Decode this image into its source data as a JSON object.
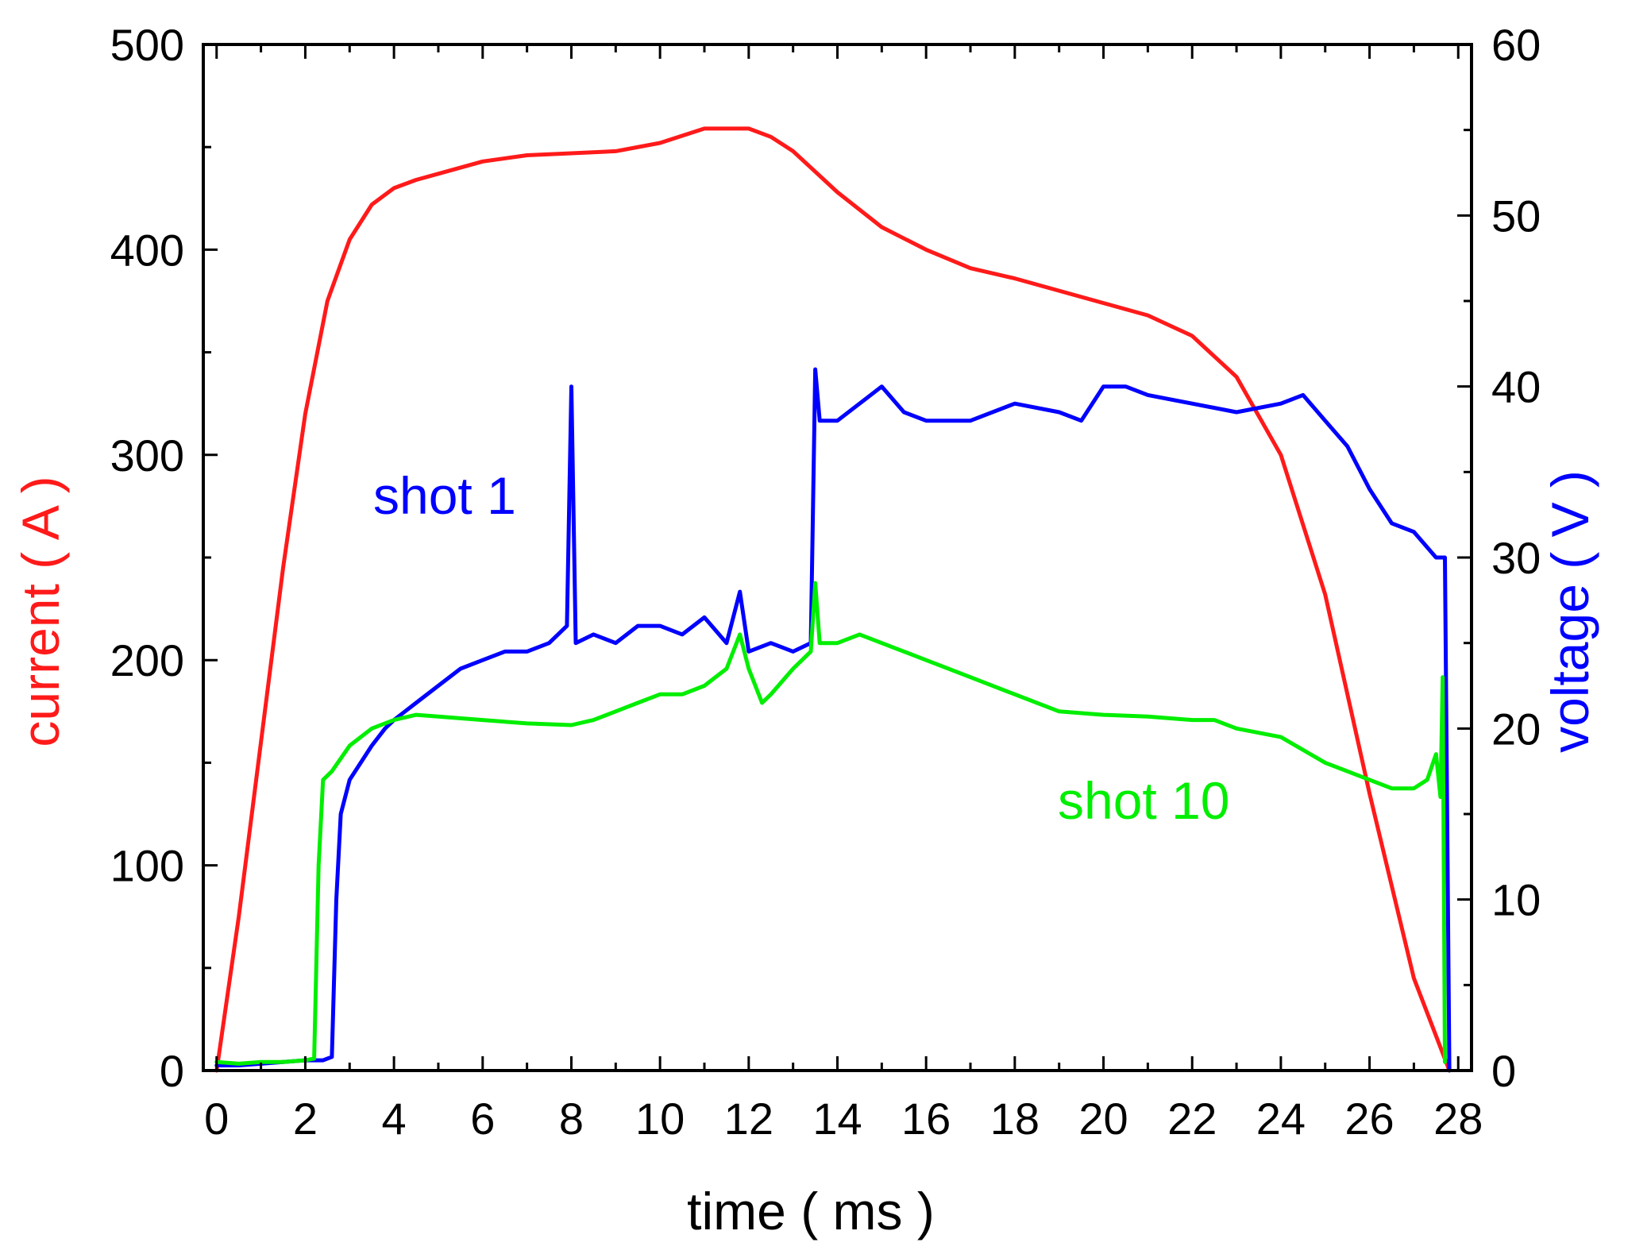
{
  "chart_data": {
    "type": "line",
    "title": "",
    "xlabel": "time ( ms )",
    "ylabel_left": {
      "prefix": "current",
      "unit": "( A )"
    },
    "ylabel_right": {
      "prefix": "voltage",
      "unit": "( V )"
    },
    "xlim": [
      -0.3,
      28.3
    ],
    "ylim_left": [
      0,
      500
    ],
    "ylim_right": [
      0,
      60
    ],
    "x_ticks": [
      0,
      2,
      4,
      6,
      8,
      10,
      12,
      14,
      16,
      18,
      20,
      22,
      24,
      26,
      28
    ],
    "x_tick_labels": [
      "0",
      "2",
      "4",
      "6",
      "8",
      "10",
      "12",
      "14",
      "16",
      "18",
      "20",
      "22",
      "24",
      "26",
      "28"
    ],
    "y_ticks_left": [
      0,
      100,
      200,
      300,
      400,
      500
    ],
    "y_tick_labels_left": [
      "0",
      "100",
      "200",
      "300",
      "400",
      "500"
    ],
    "y_ticks_right": [
      0,
      10,
      20,
      30,
      40,
      50,
      60
    ],
    "y_tick_labels_right": [
      "0",
      "10",
      "20",
      "30",
      "40",
      "50",
      "60"
    ],
    "grid": false,
    "colors": {
      "current": "#ff1a1a",
      "shot1": "#0000ff",
      "shot10": "#00ee00",
      "axis": "#000000"
    },
    "annotations": {
      "shot1": "shot 1",
      "shot10": "shot 10"
    },
    "series": [
      {
        "name": "current",
        "axis": "left",
        "color": "#ff1a1a",
        "x": [
          0,
          0.5,
          1,
          1.5,
          2,
          2.5,
          3,
          3.5,
          4,
          4.5,
          5,
          6,
          7,
          8,
          9,
          10,
          11,
          12,
          12.5,
          13,
          14,
          15,
          16,
          17,
          18,
          19,
          20,
          21,
          22,
          23,
          24,
          25,
          26,
          27,
          27.8
        ],
        "y": [
          0,
          75,
          160,
          245,
          320,
          375,
          405,
          422,
          430,
          434,
          437,
          443,
          446,
          447,
          448,
          452,
          459,
          459,
          455,
          448,
          428,
          411,
          400,
          391,
          386,
          380,
          374,
          368,
          358,
          338,
          300,
          232,
          135,
          45,
          0
        ]
      },
      {
        "name": "shot 1",
        "axis": "right",
        "color": "#0000ff",
        "x": [
          0,
          0.5,
          1,
          1.5,
          2,
          2.4,
          2.6,
          2.7,
          2.8,
          3,
          3.5,
          3.8,
          4,
          4.5,
          5,
          5.5,
          6,
          6.5,
          7,
          7.5,
          7.9,
          8,
          8.1,
          8.5,
          9,
          9.5,
          10,
          10.5,
          11,
          11.5,
          11.8,
          12,
          12.5,
          13,
          13.4,
          13.5,
          13.6,
          14,
          14.5,
          15,
          15.5,
          16,
          17,
          18,
          19,
          19.5,
          20,
          20.5,
          21,
          22,
          23,
          24,
          24.5,
          25,
          25.5,
          26,
          26.5,
          27,
          27.5,
          27.7,
          27.8
        ],
        "y": [
          0.3,
          0.3,
          0.4,
          0.5,
          0.6,
          0.6,
          0.8,
          10,
          15,
          17,
          19,
          20,
          20.5,
          21.5,
          22.5,
          23.5,
          24,
          24.5,
          24.5,
          25,
          26,
          40,
          25,
          25.5,
          25,
          26,
          26,
          25.5,
          26.5,
          25,
          28,
          24.5,
          25,
          24.5,
          25,
          41,
          38,
          38,
          39,
          40,
          38.5,
          38,
          38,
          39,
          38.5,
          38,
          40,
          40,
          39.5,
          39,
          38.5,
          39,
          39.5,
          38,
          36.5,
          34,
          32,
          31.5,
          30,
          30,
          0
        ]
      },
      {
        "name": "shot 10",
        "axis": "right",
        "color": "#00ee00",
        "x": [
          0,
          0.5,
          1,
          1.5,
          2,
          2.2,
          2.3,
          2.4,
          2.6,
          3,
          3.5,
          4,
          4.5,
          5,
          6,
          7,
          8,
          8.5,
          9,
          9.5,
          10,
          10.5,
          11,
          11.5,
          11.8,
          12,
          12.3,
          12.5,
          13,
          13.4,
          13.5,
          13.6,
          14,
          14.5,
          15,
          15.5,
          16,
          17,
          18,
          19,
          20,
          21,
          22,
          22.5,
          23,
          24,
          25,
          25.5,
          26,
          26.5,
          27,
          27.3,
          27.5,
          27.6,
          27.65,
          27.7
        ],
        "y": [
          0.5,
          0.4,
          0.5,
          0.5,
          0.6,
          0.7,
          12,
          17,
          17.5,
          19,
          20,
          20.5,
          20.8,
          20.7,
          20.5,
          20.3,
          20.2,
          20.5,
          21,
          21.5,
          22,
          22,
          22.5,
          23.5,
          25.5,
          23.5,
          21.5,
          22,
          23.5,
          24.5,
          28.5,
          25,
          25,
          25.5,
          25,
          24.5,
          24,
          23,
          22,
          21,
          20.8,
          20.7,
          20.5,
          20.5,
          20,
          19.5,
          18,
          17.5,
          17,
          16.5,
          16.5,
          17,
          18.5,
          16,
          23,
          0.5
        ]
      }
    ]
  }
}
